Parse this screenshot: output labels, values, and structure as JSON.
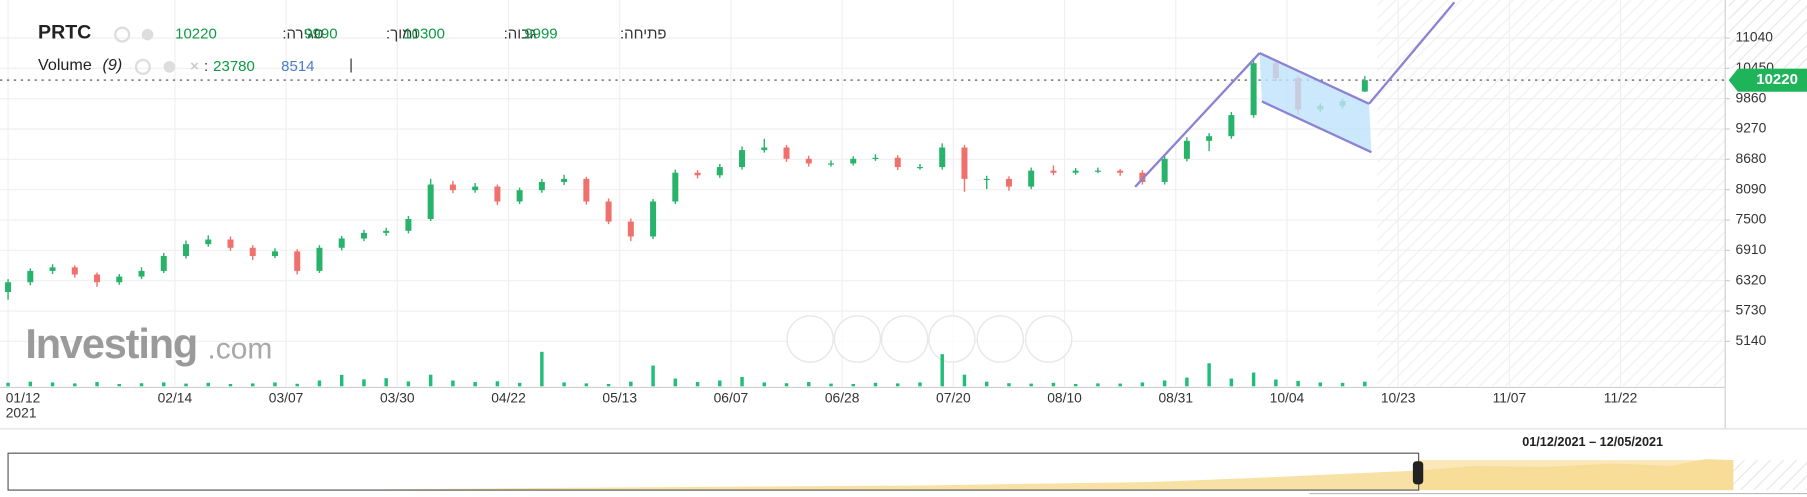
{
  "chart_data": {
    "type": "candlestick",
    "header": {
      "symbol": "PRTC",
      "close_label": "סגירה:",
      "close": 10220,
      "low_label": "נמוך:",
      "low": 9990,
      "high_label": "גבוה:",
      "high": 10300,
      "open_label": "פתיחה:",
      "open": 9999
    },
    "volume_legend": {
      "name": "Volume",
      "period": "(9)",
      "separator": ":",
      "value": 23780,
      "average": 8514,
      "cursor": "|"
    },
    "watermark": {
      "brand": "Investing",
      "suffix": ".com"
    },
    "range_label": "01/12/2021 – 12/05/2021",
    "x_sublabel": "2021",
    "up_color": "#27b36a",
    "down_color": "#f0706c",
    "volume_color": "#1fbf7a",
    "last_price": 10220,
    "last_price_color": "#1fb35a",
    "grid": true,
    "ylim": [
      4266,
      11779
    ],
    "yticks": [
      11040,
      10450,
      9860,
      9270,
      8680,
      8090,
      7500,
      6910,
      6320,
      5730,
      5140
    ],
    "vlim": [
      0,
      250000
    ],
    "categories": [
      "01/12",
      null,
      null,
      null,
      null,
      null,
      null,
      null,
      null,
      null,
      null,
      null,
      null,
      null,
      null,
      "02/14",
      null,
      null,
      null,
      null,
      null,
      null,
      null,
      null,
      null,
      "03/07",
      null,
      null,
      null,
      null,
      null,
      null,
      null,
      null,
      null,
      "03/30",
      null,
      null,
      null,
      null,
      null,
      null,
      null,
      null,
      null,
      "04/22",
      null,
      null,
      null,
      null,
      null,
      null,
      null,
      null,
      null,
      "05/13",
      null,
      null,
      null,
      null,
      null,
      null,
      null,
      null,
      null,
      "06/07",
      null,
      null,
      null,
      null,
      null,
      null,
      null,
      null,
      null,
      "06/28",
      null,
      null,
      null,
      null,
      null,
      null,
      null,
      null,
      null,
      "07/20",
      null,
      null,
      null,
      null,
      null,
      null,
      null,
      null,
      null,
      "08/10",
      null,
      null,
      null,
      null,
      null,
      null,
      null,
      null,
      null,
      "08/31",
      null,
      null,
      null,
      null,
      null,
      null,
      null,
      null,
      null,
      "10/04",
      null,
      null,
      null,
      null,
      null,
      null,
      null,
      null,
      null,
      "10/23",
      null,
      null,
      null,
      null,
      null,
      null,
      null,
      null,
      null,
      "11/07",
      null,
      null,
      null,
      null,
      null,
      null,
      null,
      null,
      null,
      "11/22",
      null,
      null,
      null,
      null,
      null,
      null,
      null,
      null,
      null
    ],
    "ohlc": [
      [
        6100,
        6350,
        5950,
        6290
      ],
      null,
      [
        6290,
        6560,
        6230,
        6510
      ],
      null,
      [
        6510,
        6640,
        6450,
        6580
      ],
      null,
      [
        6580,
        6620,
        6380,
        6440
      ],
      null,
      [
        6440,
        6480,
        6200,
        6290
      ],
      null,
      [
        6290,
        6450,
        6240,
        6400
      ],
      null,
      [
        6400,
        6580,
        6350,
        6510
      ],
      null,
      [
        6510,
        6860,
        6470,
        6800
      ],
      null,
      [
        6800,
        7100,
        6750,
        7030
      ],
      null,
      [
        7030,
        7200,
        6980,
        7120
      ],
      null,
      [
        7120,
        7180,
        6900,
        6960
      ],
      null,
      [
        6960,
        7010,
        6720,
        6800
      ],
      null,
      [
        6800,
        6950,
        6760,
        6890
      ],
      null,
      [
        6890,
        6930,
        6440,
        6510
      ],
      null,
      [
        6510,
        7010,
        6470,
        6960
      ],
      null,
      [
        6960,
        7190,
        6910,
        7140
      ],
      null,
      [
        7140,
        7310,
        7090,
        7250
      ],
      null,
      [
        7250,
        7350,
        7190,
        7290
      ],
      null,
      [
        7290,
        7580,
        7240,
        7520
      ],
      null,
      [
        7520,
        8300,
        7480,
        8190
      ],
      null,
      [
        8190,
        8260,
        8020,
        8080
      ],
      null,
      [
        8080,
        8220,
        8030,
        8150
      ],
      null,
      [
        8150,
        8190,
        7790,
        7860
      ],
      null,
      [
        7860,
        8130,
        7810,
        8080
      ],
      null,
      [
        8080,
        8300,
        8030,
        8240
      ],
      null,
      [
        8240,
        8380,
        8180,
        8300
      ],
      null,
      [
        8300,
        8340,
        7800,
        7860
      ],
      null,
      [
        7860,
        7920,
        7420,
        7470
      ],
      null,
      [
        7470,
        7530,
        7090,
        7180
      ],
      null,
      [
        7180,
        7910,
        7130,
        7860
      ],
      null,
      [
        7860,
        8480,
        7810,
        8420
      ],
      null,
      [
        8420,
        8470,
        8310,
        8370
      ],
      null,
      [
        8370,
        8590,
        8320,
        8530
      ],
      null,
      [
        8530,
        8930,
        8480,
        8860
      ],
      null,
      [
        8860,
        9080,
        8810,
        8910
      ],
      null,
      [
        8910,
        8960,
        8630,
        8690
      ],
      null,
      [
        8690,
        8750,
        8540,
        8600
      ],
      null,
      [
        8600,
        8660,
        8540,
        8600
      ],
      null,
      [
        8600,
        8740,
        8560,
        8690
      ],
      null,
      [
        8690,
        8780,
        8650,
        8710
      ],
      null,
      [
        8710,
        8760,
        8470,
        8530
      ],
      null,
      [
        8530,
        8590,
        8480,
        8530
      ],
      null,
      [
        8530,
        8990,
        8480,
        8910
      ],
      null,
      [
        8910,
        8960,
        8050,
        8300
      ],
      null,
      [
        8300,
        8360,
        8100,
        8300
      ],
      null,
      [
        8300,
        8350,
        8070,
        8150
      ],
      null,
      [
        8150,
        8520,
        8100,
        8460
      ],
      null,
      [
        8460,
        8560,
        8370,
        8420
      ],
      null,
      [
        8420,
        8510,
        8380,
        8460
      ],
      null,
      [
        8460,
        8520,
        8410,
        8460
      ],
      null,
      [
        8460,
        8490,
        8360,
        8420
      ],
      null,
      [
        8420,
        8470,
        8190,
        8240
      ],
      null,
      [
        8240,
        8740,
        8190,
        8690
      ],
      null,
      [
        8690,
        9110,
        8640,
        9040
      ],
      null,
      [
        9040,
        9190,
        8840,
        9130
      ],
      null,
      [
        9130,
        9600,
        9080,
        9540
      ],
      null,
      [
        9540,
        10650,
        9490,
        10550
      ],
      null,
      [
        10550,
        10600,
        10200,
        10260
      ],
      null,
      [
        10260,
        10310,
        9550,
        9650
      ],
      null,
      [
        9650,
        9770,
        9600,
        9720
      ],
      null,
      [
        9720,
        9860,
        9670,
        9810
      ],
      null,
      [
        9999,
        10300,
        9990,
        10220
      ],
      null,
      null,
      null,
      null,
      null,
      null,
      null,
      null,
      null,
      null,
      null,
      null,
      null,
      null,
      null,
      null,
      null,
      null,
      null,
      null,
      null,
      null,
      null,
      null,
      null,
      null,
      null,
      null,
      null,
      null,
      null,
      null
    ],
    "volume": [
      18000,
      null,
      24000,
      null,
      20000,
      null,
      15000,
      null,
      22000,
      null,
      12000,
      null,
      16000,
      null,
      20000,
      null,
      14000,
      null,
      18000,
      null,
      12000,
      null,
      15000,
      null,
      20000,
      null,
      13000,
      null,
      30000,
      null,
      59000,
      null,
      36000,
      null,
      42000,
      null,
      25000,
      null,
      60000,
      null,
      30000,
      null,
      22000,
      null,
      26000,
      null,
      18000,
      null,
      178000,
      null,
      20000,
      null,
      15000,
      null,
      12000,
      null,
      24000,
      null,
      107000,
      null,
      40000,
      null,
      22000,
      null,
      30000,
      null,
      48000,
      null,
      20000,
      null,
      16000,
      null,
      22000,
      null,
      14000,
      null,
      12000,
      null,
      18000,
      null,
      15000,
      null,
      20000,
      null,
      166000,
      null,
      60000,
      null,
      24000,
      null,
      16000,
      null,
      14000,
      null,
      18000,
      null,
      12000,
      null,
      15000,
      null,
      14000,
      null,
      20000,
      null,
      30000,
      null,
      45000,
      null,
      119000,
      null,
      40000,
      null,
      71000,
      null,
      35000,
      null,
      28000,
      null,
      20000,
      null,
      18000,
      null,
      23780,
      null,
      null,
      null,
      null,
      null,
      null,
      null,
      null,
      null,
      null,
      null,
      null,
      null,
      null,
      null,
      null,
      null,
      null,
      null,
      null,
      null,
      null,
      null,
      null,
      null,
      null,
      null,
      null,
      null,
      null,
      null,
      null
    ]
  }
}
